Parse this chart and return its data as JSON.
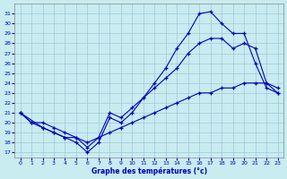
{
  "xlabel": "Graphe des températures (°c)",
  "x_ticks": [
    0,
    1,
    2,
    3,
    4,
    5,
    6,
    7,
    8,
    9,
    10,
    11,
    12,
    13,
    14,
    15,
    16,
    17,
    18,
    19,
    20,
    21,
    22,
    23
  ],
  "y_ticks": [
    17,
    18,
    19,
    20,
    21,
    22,
    23,
    24,
    25,
    26,
    27,
    28,
    29,
    30,
    31
  ],
  "ylim": [
    16.5,
    32.0
  ],
  "xlim": [
    -0.5,
    23.5
  ],
  "bg_color": "#c8ecf0",
  "grid_color": "#a0c8d8",
  "line_color": "#0000bb",
  "line1_x": [
    0,
    1,
    2,
    3,
    4,
    5,
    6,
    7,
    8,
    9,
    10,
    11,
    12,
    13,
    14,
    15,
    16,
    17,
    18,
    19,
    20,
    21,
    22,
    23
  ],
  "line1_y": [
    21.0,
    20.0,
    19.5,
    19.0,
    18.5,
    18.0,
    17.0,
    18.0,
    20.5,
    20.0,
    21.0,
    22.5,
    24.0,
    25.5,
    27.5,
    29.0,
    31.0,
    31.2,
    30.0,
    29.0,
    29.0,
    26.0,
    23.5,
    23.0
  ],
  "line2_x": [
    0,
    2,
    3,
    4,
    5,
    6,
    7,
    8,
    9,
    10,
    11,
    12,
    13,
    14,
    15,
    16,
    17,
    18,
    19,
    20,
    21,
    22,
    23
  ],
  "line2_y": [
    21.0,
    19.5,
    19.0,
    18.5,
    18.5,
    17.5,
    18.5,
    21.0,
    20.5,
    21.5,
    22.5,
    23.5,
    24.5,
    25.5,
    27.0,
    28.0,
    28.5,
    28.5,
    27.5,
    28.0,
    27.5,
    24.0,
    23.0
  ],
  "line3_x": [
    0,
    1,
    2,
    3,
    4,
    5,
    6,
    7,
    8,
    9,
    10,
    11,
    12,
    13,
    14,
    15,
    16,
    17,
    18,
    19,
    20,
    21,
    22,
    23
  ],
  "line3_y": [
    21.0,
    20.0,
    20.0,
    19.5,
    19.0,
    18.5,
    18.0,
    18.5,
    19.0,
    19.5,
    20.0,
    20.5,
    21.0,
    21.5,
    22.0,
    22.5,
    23.0,
    23.0,
    23.5,
    23.5,
    24.0,
    24.0,
    24.0,
    23.5
  ]
}
